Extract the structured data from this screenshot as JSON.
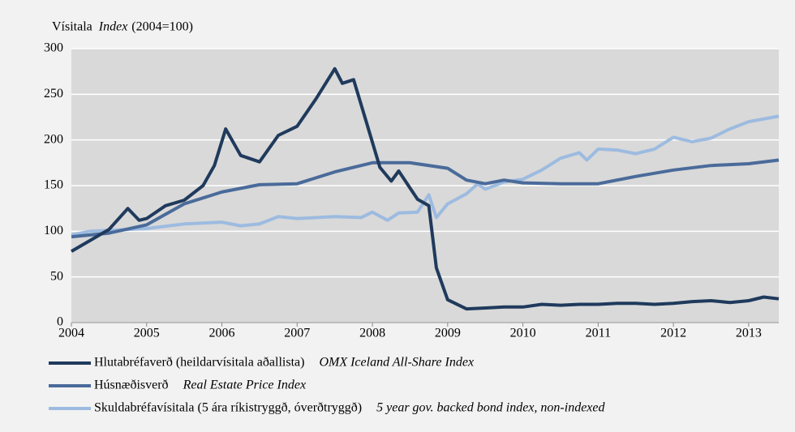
{
  "chart_data": {
    "type": "line",
    "ylabel": "Vísitala",
    "ylabel_en": "Index",
    "ylabel_note": "(2004=100)",
    "xlim": [
      2004,
      2013.4
    ],
    "xticks": [
      2004,
      2005,
      2006,
      2007,
      2008,
      2009,
      2010,
      2011,
      2012,
      2013
    ],
    "ylim": [
      0,
      300
    ],
    "yticks": [
      0,
      50,
      100,
      150,
      200,
      250,
      300
    ],
    "grid": true,
    "series": [
      {
        "name": "Hlutabréfaverð (heildarvísitala aðallista)",
        "name_en": "OMX Iceland All-Share Index",
        "color": "#1f3a5c",
        "x": [
          2004,
          2004.25,
          2004.5,
          2004.75,
          2004.9,
          2005,
          2005.25,
          2005.5,
          2005.75,
          2005.9,
          2006.05,
          2006.25,
          2006.5,
          2006.75,
          2007,
          2007.25,
          2007.5,
          2007.6,
          2007.75,
          2007.9,
          2008.1,
          2008.25,
          2008.35,
          2008.6,
          2008.75,
          2008.85,
          2009,
          2009.25,
          2009.5,
          2009.75,
          2010,
          2010.25,
          2010.5,
          2010.75,
          2011,
          2011.25,
          2011.5,
          2011.75,
          2012,
          2012.25,
          2012.5,
          2012.75,
          2013,
          2013.2,
          2013.4
        ],
        "values": [
          78,
          90,
          102,
          125,
          112,
          114,
          128,
          134,
          150,
          172,
          212,
          183,
          176,
          205,
          215,
          245,
          278,
          262,
          266,
          225,
          170,
          155,
          166,
          135,
          128,
          60,
          25,
          15,
          16,
          17,
          17,
          20,
          19,
          20,
          20,
          21,
          21,
          20,
          21,
          23,
          24,
          22,
          24,
          28,
          26
        ]
      },
      {
        "name": "Húsnæðisverð",
        "name_en": "Real Estate Price Index",
        "color": "#4a6b9a",
        "x": [
          2004,
          2004.5,
          2005,
          2005.5,
          2006,
          2006.5,
          2007,
          2007.5,
          2008,
          2008.5,
          2009,
          2009.25,
          2009.5,
          2009.75,
          2010,
          2010.5,
          2010.75,
          2011,
          2011.5,
          2012,
          2012.5,
          2013,
          2013.4
        ],
        "values": [
          94,
          98,
          107,
          130,
          143,
          151,
          152,
          165,
          175,
          175,
          169,
          156,
          152,
          156,
          153,
          152,
          152,
          152,
          160,
          167,
          172,
          174,
          178
        ]
      },
      {
        "name": "Skuldabréfavísitala (5 ára ríkistryggð, óverðtryggð)",
        "name_en": "5 year gov. backed bond index, non-indexed",
        "color": "#9dbbe0",
        "x": [
          2004,
          2004.25,
          2004.5,
          2005,
          2005.5,
          2006,
          2006.25,
          2006.5,
          2006.75,
          2007,
          2007.5,
          2007.85,
          2008,
          2008.2,
          2008.35,
          2008.6,
          2008.75,
          2008.85,
          2009,
          2009.25,
          2009.4,
          2009.5,
          2009.75,
          2010,
          2010.25,
          2010.5,
          2010.75,
          2010.85,
          2011,
          2011.25,
          2011.5,
          2011.75,
          2012,
          2012.25,
          2012.5,
          2012.75,
          2013,
          2013.4
        ],
        "values": [
          96,
          100,
          101,
          103,
          108,
          110,
          106,
          108,
          116,
          114,
          116,
          115,
          121,
          112,
          120,
          121,
          140,
          115,
          130,
          141,
          152,
          146,
          154,
          157,
          167,
          180,
          186,
          178,
          190,
          189,
          185,
          190,
          203,
          198,
          202,
          212,
          220,
          226
        ]
      }
    ]
  }
}
